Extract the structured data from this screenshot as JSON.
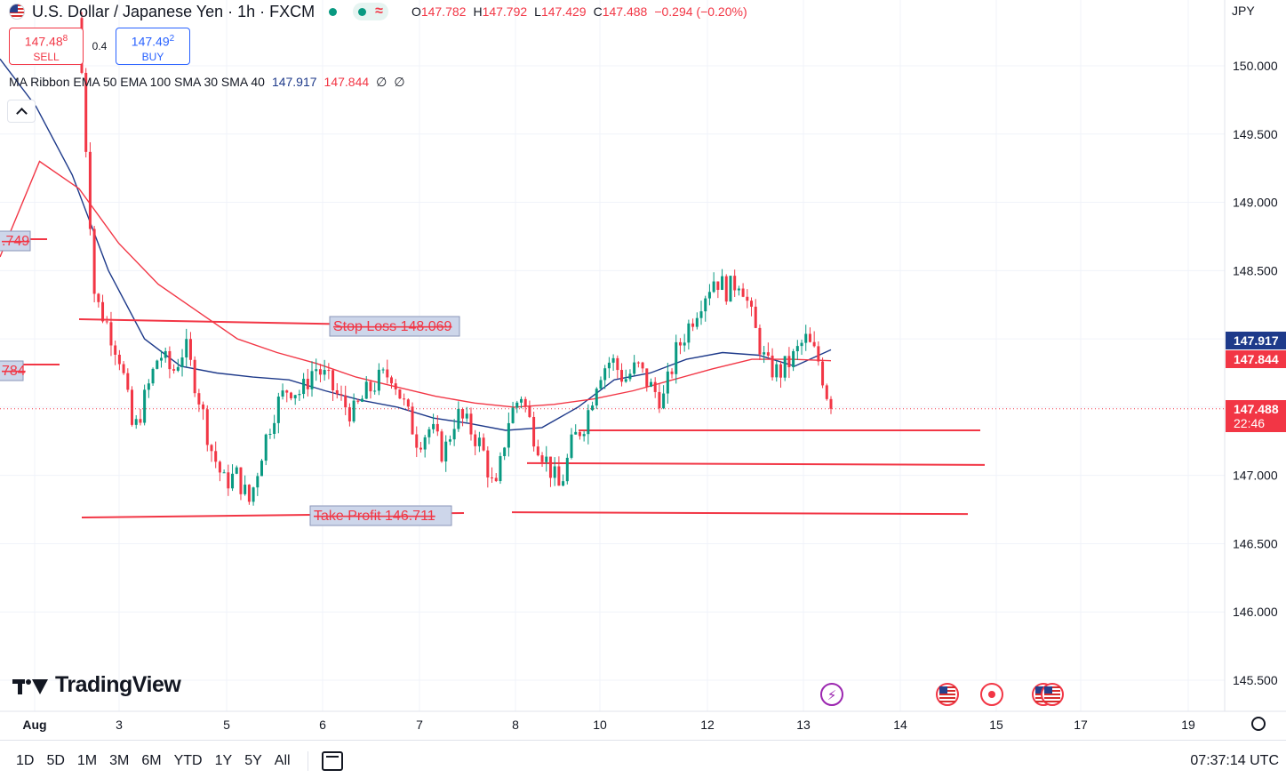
{
  "header": {
    "symbol": "U.S. Dollar / Japanese Yen · 1h · FXCM",
    "open_label": "O",
    "open": "147.782",
    "high_label": "H",
    "high": "147.792",
    "low_label": "L",
    "low": "147.429",
    "close_label": "C",
    "close": "147.488",
    "change": "−0.294 (−0.20%)",
    "wave_icon": "≈"
  },
  "trade": {
    "sell_price": "147.48",
    "sell_sup": "8",
    "sell_label": "SELL",
    "spread": "0.4",
    "buy_price": "147.49",
    "buy_sup": "2",
    "buy_label": "BUY"
  },
  "indicator": {
    "name": "MA Ribbon EMA 50 EMA 100 SMA 30 SMA 40",
    "val1": "147.917",
    "val2": "147.844",
    "val3": "∅",
    "val4": "∅"
  },
  "currency": "JPY",
  "brand": "TradingView",
  "ranges": [
    "1D",
    "5D",
    "1M",
    "3M",
    "6M",
    "YTD",
    "1Y",
    "5Y",
    "All"
  ],
  "clock": "07:37:14 UTC",
  "colors": {
    "up": "#089981",
    "down": "#f23645",
    "ema50": "#1e3a8a",
    "ema100": "#f23645",
    "label_bg": "#cdd6ea"
  },
  "chart_data": {
    "type": "candlestick",
    "y_ticks": [
      "150.000",
      "149.500",
      "149.000",
      "148.500",
      "147.000",
      "146.500",
      "146.000",
      "145.500"
    ],
    "ylim": [
      145.2,
      150.5
    ],
    "x_ticks": [
      "Aug",
      "3",
      "5",
      "6",
      "7",
      "8",
      "10",
      "12",
      "13",
      "14",
      "15",
      "17",
      "19"
    ],
    "last_price": "147.488",
    "countdown": "22:46",
    "price_labels": [
      {
        "value": "147.917",
        "color": "#1e3a8a"
      },
      {
        "value": "147.844",
        "color": "#f23645"
      }
    ],
    "order_lines": [
      {
        "label": "Stop Loss 148.069"
      },
      {
        "label": "Take Profit 146.711"
      },
      {
        "label": ".749"
      },
      {
        "label": "784"
      }
    ],
    "horizontal_lines": [
      147.33,
      147.09,
      146.73
    ],
    "close_series": [
      149.95,
      148.3,
      148.1,
      147.85,
      147.3,
      147.6,
      147.9,
      147.75,
      147.95,
      147.6,
      147.2,
      146.95,
      147.0,
      146.8,
      147.2,
      147.5,
      147.65,
      147.6,
      147.8,
      147.7,
      147.55,
      147.45,
      147.6,
      147.7,
      147.75,
      147.5,
      147.25,
      147.35,
      147.15,
      147.45,
      147.35,
      147.2,
      146.85,
      147.4,
      147.6,
      147.3,
      147.1,
      146.9,
      147.25,
      147.4,
      147.75,
      147.85,
      147.7,
      147.8,
      147.65,
      147.55,
      147.9,
      148.1,
      148.3,
      148.45,
      148.35,
      148.45,
      148.1,
      147.8,
      147.75,
      147.85,
      148.0,
      147.85,
      147.488
    ],
    "ema50_series": [
      150.05,
      149.7,
      149.2,
      148.5,
      148.0,
      147.8,
      147.75,
      147.72,
      147.7,
      147.62,
      147.55,
      147.5,
      147.42,
      147.38,
      147.33,
      147.35,
      147.5,
      147.7,
      147.75,
      147.85,
      147.9,
      147.88,
      147.8,
      147.92
    ],
    "ema100_series": [
      148.6,
      149.3,
      149.1,
      148.7,
      148.4,
      148.2,
      148.0,
      147.9,
      147.82,
      147.72,
      147.65,
      147.58,
      147.53,
      147.5,
      147.52,
      147.56,
      147.62,
      147.7,
      147.78,
      147.85,
      147.85,
      147.84
    ]
  }
}
